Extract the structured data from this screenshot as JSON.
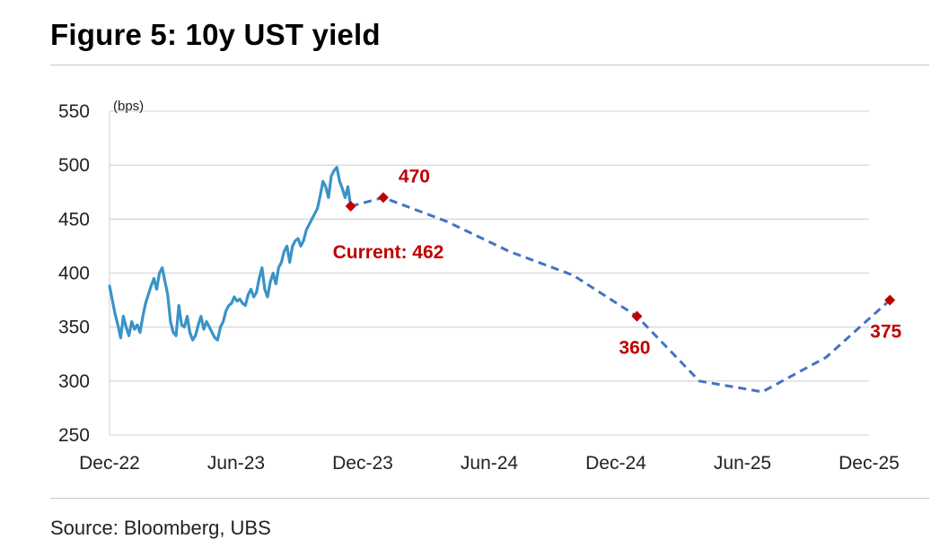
{
  "title": "Figure 5: 10y UST yield",
  "source": "Source: Bloomberg, UBS",
  "chart_data": {
    "type": "line",
    "title": "Figure 5: 10y UST yield",
    "ylabel": "(bps)",
    "ylim": [
      250,
      550
    ],
    "yticks": [
      250,
      300,
      350,
      400,
      450,
      500,
      550
    ],
    "xticks": [
      "Dec-22",
      "Jun-23",
      "Dec-23",
      "Jun-24",
      "Dec-24",
      "Jun-25",
      "Dec-25"
    ],
    "xlim": [
      "2022-12",
      "2025-12"
    ],
    "grid": true,
    "colors": {
      "history": "#3a93c8",
      "forecast": "#4472c4",
      "marker": "#c00000",
      "label": "#c00000"
    },
    "series": [
      {
        "kind": "history",
        "x": [
          "2022-12-01",
          "2022-12-05",
          "2022-12-09",
          "2022-12-13",
          "2022-12-17",
          "2022-12-21",
          "2022-12-25",
          "2022-12-29",
          "2023-01-02",
          "2023-01-06",
          "2023-01-10",
          "2023-01-14",
          "2023-01-18",
          "2023-01-22",
          "2023-01-26",
          "2023-01-30",
          "2023-02-03",
          "2023-02-07",
          "2023-02-11",
          "2023-02-15",
          "2023-02-19",
          "2023-02-23",
          "2023-02-27",
          "2023-03-03",
          "2023-03-07",
          "2023-03-11",
          "2023-03-15",
          "2023-03-19",
          "2023-03-23",
          "2023-03-27",
          "2023-03-31",
          "2023-04-04",
          "2023-04-08",
          "2023-04-12",
          "2023-04-16",
          "2023-04-20",
          "2023-04-24",
          "2023-04-28",
          "2023-05-02",
          "2023-05-06",
          "2023-05-10",
          "2023-05-14",
          "2023-05-18",
          "2023-05-22",
          "2023-05-26",
          "2023-05-30",
          "2023-06-03",
          "2023-06-07",
          "2023-06-11",
          "2023-06-15",
          "2023-06-19",
          "2023-06-23",
          "2023-06-27",
          "2023-07-01",
          "2023-07-05",
          "2023-07-09",
          "2023-07-13",
          "2023-07-17",
          "2023-07-21",
          "2023-07-25",
          "2023-07-29",
          "2023-08-02",
          "2023-08-06",
          "2023-08-10",
          "2023-08-14",
          "2023-08-18",
          "2023-08-22",
          "2023-08-26",
          "2023-08-30",
          "2023-09-03",
          "2023-09-07",
          "2023-09-11",
          "2023-09-15",
          "2023-09-19",
          "2023-09-23",
          "2023-09-27",
          "2023-10-01",
          "2023-10-05",
          "2023-10-09",
          "2023-10-13",
          "2023-10-17",
          "2023-10-21",
          "2023-10-25",
          "2023-10-29",
          "2023-11-02",
          "2023-11-06",
          "2023-11-10",
          "2023-11-14"
        ],
        "values": [
          388,
          375,
          362,
          352,
          340,
          360,
          350,
          342,
          355,
          348,
          352,
          345,
          360,
          372,
          380,
          388,
          395,
          385,
          400,
          405,
          392,
          380,
          355,
          345,
          342,
          370,
          352,
          350,
          360,
          345,
          338,
          342,
          352,
          360,
          348,
          355,
          350,
          345,
          340,
          338,
          350,
          355,
          365,
          370,
          372,
          378,
          374,
          376,
          372,
          370,
          380,
          385,
          378,
          382,
          395,
          405,
          385,
          378,
          392,
          400,
          390,
          405,
          410,
          420,
          425,
          410,
          425,
          430,
          432,
          425,
          430,
          440,
          445,
          450,
          455,
          460,
          472,
          485,
          480,
          470,
          490,
          495,
          498,
          485,
          478,
          470,
          480,
          462
        ]
      },
      {
        "kind": "forecast",
        "x": [
          "2023-11-14",
          "2023-12-31",
          "2024-03-31",
          "2024-06-30",
          "2024-09-30",
          "2024-12-31",
          "2025-03-31",
          "2025-06-30",
          "2025-09-30",
          "2025-12-31"
        ],
        "values": [
          462,
          470,
          448,
          420,
          398,
          360,
          300,
          290,
          322,
          375
        ]
      }
    ],
    "annotations": [
      {
        "x": "2023-11-14",
        "value": 462,
        "text": "Current: 462"
      },
      {
        "x": "2023-12-31",
        "value": 470,
        "text": "470"
      },
      {
        "x": "2024-12-31",
        "value": 360,
        "text": "360"
      },
      {
        "x": "2025-12-31",
        "value": 375,
        "text": "375"
      }
    ]
  }
}
